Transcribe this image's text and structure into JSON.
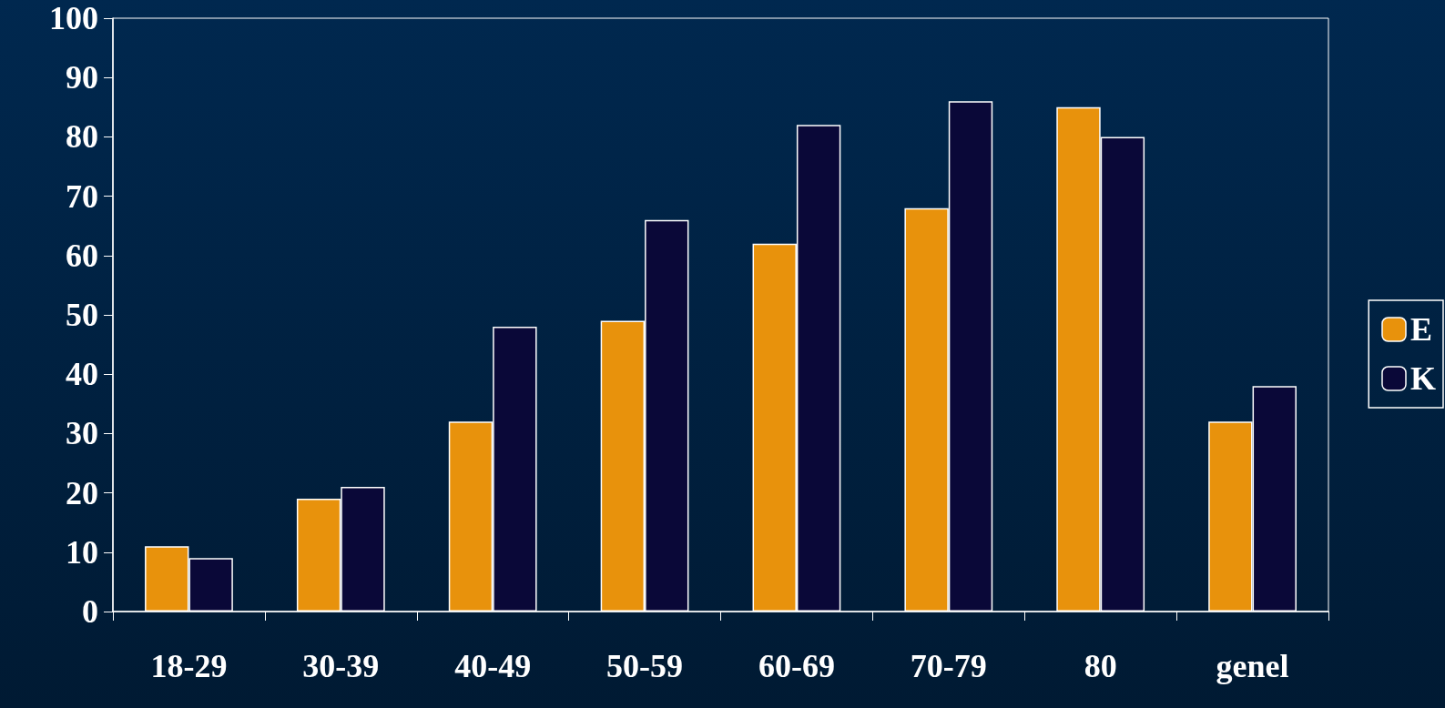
{
  "chart_data": {
    "type": "bar",
    "categories": [
      "18-29",
      "30-39",
      "40-49",
      "50-59",
      "60-69",
      "70-79",
      "80",
      "genel"
    ],
    "series": [
      {
        "name": "E",
        "color": "#e8920c",
        "values": [
          11,
          19,
          32,
          49,
          62,
          68,
          85,
          32
        ]
      },
      {
        "name": "K",
        "color": "#0a0838",
        "values": [
          9,
          21,
          48,
          66,
          82,
          86,
          80,
          38
        ]
      }
    ],
    "ylim": [
      0,
      100
    ],
    "yticks": [
      0,
      10,
      20,
      30,
      40,
      50,
      60,
      70,
      80,
      90,
      100
    ],
    "grid": false,
    "legend": "right"
  }
}
